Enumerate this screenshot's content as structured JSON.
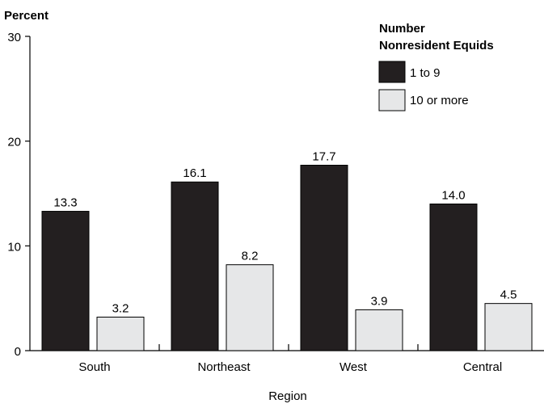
{
  "chart_data": {
    "type": "bar",
    "ylabel": "Percent",
    "xlabel": "Region",
    "ylim": [
      0,
      30
    ],
    "yticks": [
      0,
      10,
      20,
      30
    ],
    "categories": [
      "South",
      "Northeast",
      "West",
      "Central"
    ],
    "legend": {
      "title_line1": "Number",
      "title_line2": "Nonresident Equids",
      "placement": "top-right"
    },
    "series": [
      {
        "name": "1 to 9",
        "values": [
          13.3,
          16.1,
          17.7,
          14.0
        ],
        "color": "#231f20"
      },
      {
        "name": "10 or more",
        "values": [
          3.2,
          8.2,
          3.9,
          4.5
        ],
        "color": "#e6e7e8"
      }
    ],
    "value_labels": [
      [
        "13.3",
        "16.1",
        "17.7",
        "14.0"
      ],
      [
        "3.2",
        "8.2",
        "3.9",
        "4.5"
      ]
    ],
    "grid": false
  }
}
